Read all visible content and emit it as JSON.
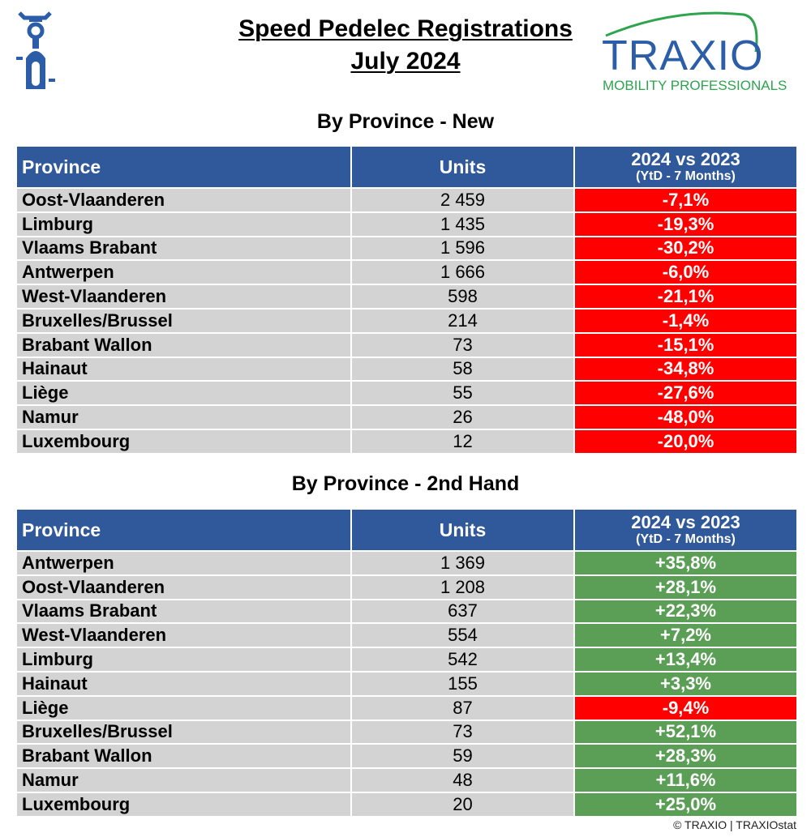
{
  "header": {
    "title_line1": "Speed Pedelec Registrations",
    "title_line2": "July 2024",
    "logo_text": "TRAXIO",
    "logo_tagline": "MOBILITY PROFESSIONALS",
    "icon": "speed-pedelec-rider-icon"
  },
  "colors": {
    "header_bg": "#30599b",
    "row_bg": "#d3d3d3",
    "negative": "#ff0000",
    "positive": "#5b9e55",
    "logo_blue": "#2b5da8",
    "logo_green": "#2ea44f"
  },
  "columns": {
    "province": "Province",
    "units": "Units",
    "change": "2024 vs 2023",
    "change_sub": "(YtD - 7 Months)"
  },
  "new": {
    "title": "By Province - New",
    "rows": [
      {
        "province": "Oost-Vlaanderen",
        "units": "2 459",
        "change": "-7,1%",
        "trend": "neg"
      },
      {
        "province": "Limburg",
        "units": "1 435",
        "change": "-19,3%",
        "trend": "neg"
      },
      {
        "province": "Vlaams Brabant",
        "units": "1 596",
        "change": "-30,2%",
        "trend": "neg"
      },
      {
        "province": "Antwerpen",
        "units": "1 666",
        "change": "-6,0%",
        "trend": "neg"
      },
      {
        "province": "West-Vlaanderen",
        "units": "598",
        "change": "-21,1%",
        "trend": "neg"
      },
      {
        "province": "Bruxelles/Brussel",
        "units": "214",
        "change": "-1,4%",
        "trend": "neg"
      },
      {
        "province": "Brabant Wallon",
        "units": "73",
        "change": "-15,1%",
        "trend": "neg"
      },
      {
        "province": "Hainaut",
        "units": "58",
        "change": "-34,8%",
        "trend": "neg"
      },
      {
        "province": "Liège",
        "units": "55",
        "change": "-27,6%",
        "trend": "neg"
      },
      {
        "province": "Namur",
        "units": "26",
        "change": "-48,0%",
        "trend": "neg"
      },
      {
        "province": "Luxembourg",
        "units": "12",
        "change": "-20,0%",
        "trend": "neg"
      }
    ]
  },
  "used": {
    "title": "By Province - 2nd Hand",
    "rows": [
      {
        "province": "Antwerpen",
        "units": "1 369",
        "change": "+35,8%",
        "trend": "pos"
      },
      {
        "province": "Oost-Vlaanderen",
        "units": "1 208",
        "change": "+28,1%",
        "trend": "pos"
      },
      {
        "province": "Vlaams Brabant",
        "units": "637",
        "change": "+22,3%",
        "trend": "pos"
      },
      {
        "province": "West-Vlaanderen",
        "units": "554",
        "change": "+7,2%",
        "trend": "pos"
      },
      {
        "province": "Limburg",
        "units": "542",
        "change": "+13,4%",
        "trend": "pos"
      },
      {
        "province": "Hainaut",
        "units": "155",
        "change": "+3,3%",
        "trend": "pos"
      },
      {
        "province": "Liège",
        "units": "87",
        "change": "-9,4%",
        "trend": "neg"
      },
      {
        "province": "Bruxelles/Brussel",
        "units": "73",
        "change": "+52,1%",
        "trend": "pos"
      },
      {
        "province": "Brabant Wallon",
        "units": "59",
        "change": "+28,3%",
        "trend": "pos"
      },
      {
        "province": "Namur",
        "units": "48",
        "change": "+11,6%",
        "trend": "pos"
      },
      {
        "province": "Luxembourg",
        "units": "20",
        "change": "+25,0%",
        "trend": "pos"
      }
    ]
  },
  "footer": "© TRAXIO | TRAXIOstat"
}
